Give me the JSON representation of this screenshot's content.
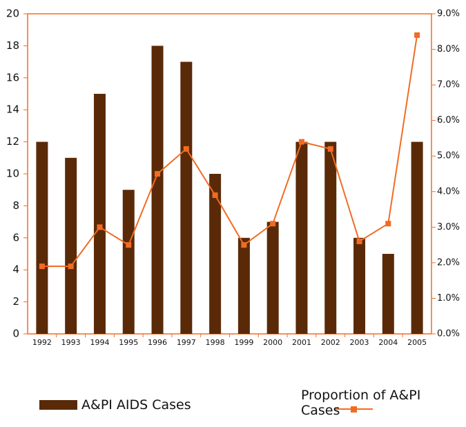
{
  "chart_data": {
    "type": "bar",
    "categories": [
      "1992",
      "1993",
      "1994",
      "1995",
      "1996",
      "1997",
      "1998",
      "1999",
      "2000",
      "2001",
      "2002",
      "2003",
      "2004",
      "2005"
    ],
    "series": [
      {
        "name": "A&PI AIDS Cases",
        "type": "bar",
        "color": "#5a2a08",
        "values": [
          12,
          11,
          15,
          9,
          18,
          17,
          10,
          6,
          7,
          12,
          12,
          6,
          5,
          12
        ]
      },
      {
        "name": "Proportion of A&PI Cases",
        "type": "line",
        "axis": "y2",
        "color": "#f26b22",
        "values": [
          1.9,
          1.9,
          3.0,
          2.5,
          4.5,
          5.2,
          3.9,
          2.5,
          3.1,
          5.4,
          5.2,
          2.6,
          3.1,
          8.4
        ]
      }
    ],
    "ylim": [
      0,
      20
    ],
    "yticks": [
      0,
      2,
      4,
      6,
      8,
      10,
      12,
      14,
      16,
      18,
      20
    ],
    "y2lim": [
      0,
      9
    ],
    "y2ticks": [
      {
        "value": 0,
        "label": "0.0%"
      },
      {
        "value": 1,
        "label": "1.0%"
      },
      {
        "value": 2,
        "label": "2.0%"
      },
      {
        "value": 3,
        "label": "3.0%"
      },
      {
        "value": 4,
        "label": "4.0%"
      },
      {
        "value": 5,
        "label": "5.0%"
      },
      {
        "value": 6,
        "label": "6.0%"
      },
      {
        "value": 7,
        "label": "7.0%"
      },
      {
        "value": 8,
        "label": "8.0%"
      },
      {
        "value": 9,
        "label": "9.0%"
      }
    ],
    "legend": "bottom"
  }
}
